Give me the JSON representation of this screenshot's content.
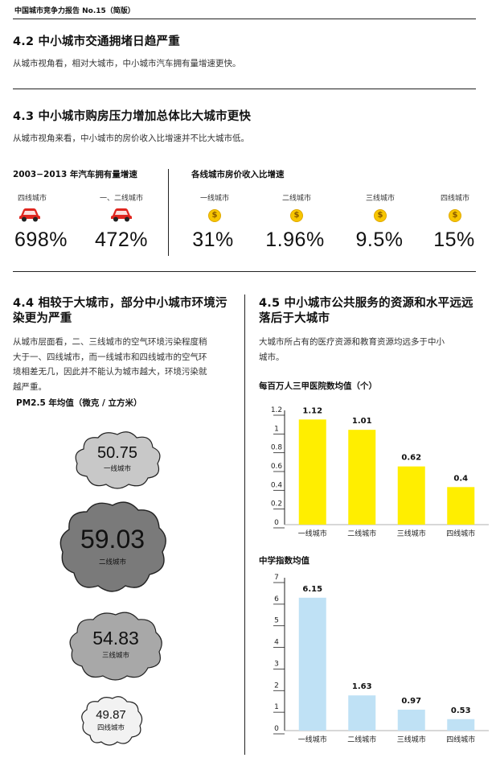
{
  "header": {
    "title": "中国城市竞争力报告 No.15（简版）"
  },
  "s42": {
    "heading": "4.2 中小城市交通拥堵日趋严重",
    "body": "从城市视角看，相对大城市，中小城市汽车拥有量增速更快。"
  },
  "s43": {
    "heading": "4.3 中小城市购房压力增加总体比大城市更快",
    "body": "从城市视角来看，中小城市的房价收入比增速并不比大城市低。"
  },
  "car_stats": {
    "title": "2003−2013 年汽车拥有量增速",
    "items": [
      {
        "label": "四线城市",
        "value": "698%",
        "icon": "car-icon"
      },
      {
        "label": "一、二线城市",
        "value": "472%",
        "icon": "car-icon"
      }
    ]
  },
  "price_stats": {
    "title": "各线城市房价收入比增速",
    "items": [
      {
        "label": "一线城市",
        "value": "31%",
        "icon": "coin-icon"
      },
      {
        "label": "二线城市",
        "value": "1.96%",
        "icon": "coin-icon"
      },
      {
        "label": "三线城市",
        "value": "9.5%",
        "icon": "coin-icon"
      },
      {
        "label": "四线城市",
        "value": "15%",
        "icon": "coin-icon"
      }
    ]
  },
  "s44": {
    "heading": "4.4 相较于大城市，部分中小城市环境污染更为严重",
    "heading_line1": "4.4 相较于大城市，部分中小城市环境污",
    "heading_line2": "染更为严重",
    "body_lines": [
      "从城市层面看，二、三线城市的空气环境污染程度稍",
      "大于一、四线城市，而一线城市和四线城市的空气环",
      "境相差无几，因此并不能认为城市越大，环境污染就",
      "越严重。"
    ]
  },
  "pm25": {
    "title": "PM2.5 年均值（微克 / 立方米）",
    "items": [
      {
        "value": "50.75",
        "label": "一线城市",
        "color": "#c8c8c8"
      },
      {
        "value": "59.03",
        "label": "二线城市",
        "color": "#7a7a7a"
      },
      {
        "value": "54.83",
        "label": "三线城市",
        "color": "#a8a8a8"
      },
      {
        "value": "49.87",
        "label": "四线城市",
        "color": "#f2f2f2"
      }
    ]
  },
  "s45": {
    "heading_line1": "4.5 中小城市公共服务的资源和水平远远",
    "heading_line2": "落后于大城市",
    "body_lines": [
      "大城市所占有的医疗资源和教育资源均远多于中小",
      "城市。"
    ]
  },
  "chart_data": [
    {
      "type": "bar",
      "title": "每百万人三甲医院数均值（个）",
      "categories": [
        "一线城市",
        "二线城市",
        "三线城市",
        "四线城市"
      ],
      "values": [
        1.12,
        1.01,
        0.62,
        0.4
      ],
      "value_labels": [
        "1.12",
        "1.01",
        "0.62",
        "0.4"
      ],
      "ylim": [
        0,
        1.2
      ],
      "yticks": [
        0,
        0.2,
        0.4,
        0.6,
        0.8,
        1,
        1.2
      ],
      "ytick_labels": [
        "0",
        "0.2",
        "0.4",
        "0.6",
        "0.8",
        "1",
        "1.2"
      ],
      "color": "#ffee00",
      "grid": false
    },
    {
      "type": "bar",
      "title": "中学指数均值",
      "categories": [
        "一线城市",
        "二线城市",
        "三线城市",
        "四线城市"
      ],
      "values": [
        6.15,
        1.63,
        0.97,
        0.53
      ],
      "value_labels": [
        "6.15",
        "1.63",
        "0.97",
        "0.53"
      ],
      "ylim": [
        0,
        7
      ],
      "yticks": [
        0,
        1,
        2,
        3,
        4,
        5,
        6,
        7
      ],
      "ytick_labels": [
        "0",
        "1",
        "2",
        "3",
        "4",
        "5",
        "6",
        "7"
      ],
      "color": "#bfe1f5",
      "grid": false
    }
  ]
}
